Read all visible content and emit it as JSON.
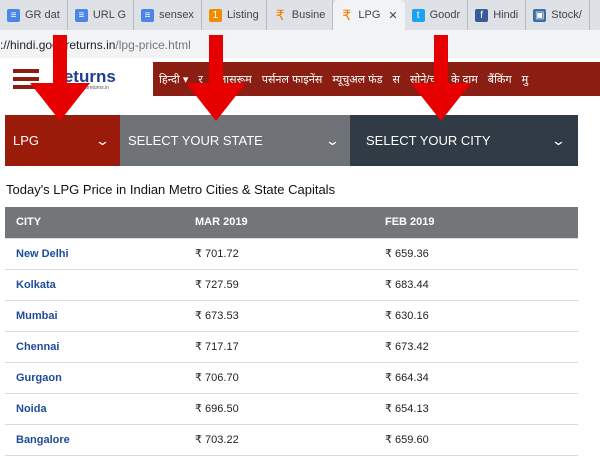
{
  "browser": {
    "tabs": [
      {
        "label": "GR dat",
        "icon": "docs-icon",
        "color": "#4a86e8"
      },
      {
        "label": "URL G",
        "icon": "docs-icon",
        "color": "#4a86e8"
      },
      {
        "label": "sensex",
        "icon": "docs-icon",
        "color": "#4a86e8"
      },
      {
        "label": "Listing",
        "icon": "orange-circle-icon",
        "color": "#f08c00"
      },
      {
        "label": "Busine",
        "icon": "rupee-icon",
        "color": "#f07d00"
      },
      {
        "label": "LPG",
        "icon": "rupee-icon",
        "color": "#f07d00",
        "active": true
      },
      {
        "label": "Goodr",
        "icon": "twitter-icon",
        "color": "#1da1f2"
      },
      {
        "label": "Hindi",
        "icon": "facebook-icon",
        "color": "#3b5998"
      },
      {
        "label": "Stock/",
        "icon": "image-icon",
        "color": "#3a6ea5"
      }
    ],
    "close_label": "✕",
    "url_prefix": "://hindi.goodreturns.in",
    "url_path": "/lpg-price.html"
  },
  "site": {
    "brand_symbol": "₹",
    "brand": "eturns",
    "brand_sub": "www.goodreturns.in",
    "language": "हिन्दी ▾",
    "nav": [
      "र",
      "क्लासरूम",
      "पर्सनल फाइनेंस",
      "म्यूचुअल फंड",
      "स",
      "सोने/चांदी के दाम",
      "बैंकिंग",
      "मु"
    ]
  },
  "selectors": {
    "fuel": "LPG",
    "state": "SELECT YOUR STATE",
    "city": "SELECT YOUR CITY",
    "chevron": "⌄"
  },
  "title": "Today's LPG Price in Indian Metro Cities & State Capitals",
  "table": {
    "headers": [
      "CITY",
      "MAR 2019",
      "FEB 2019"
    ],
    "rows": [
      [
        "New Delhi",
        "₹ 701.72",
        "₹ 659.36"
      ],
      [
        "Kolkata",
        "₹ 727.59",
        "₹ 683.44"
      ],
      [
        "Mumbai",
        "₹ 673.53",
        "₹ 630.16"
      ],
      [
        "Chennai",
        "₹ 717.17",
        "₹ 673.42"
      ],
      [
        "Gurgaon",
        "₹ 706.70",
        "₹ 664.34"
      ],
      [
        "Noida",
        "₹ 696.50",
        "₹ 654.13"
      ],
      [
        "Bangalore",
        "₹ 703.22",
        "₹ 659.60"
      ]
    ]
  },
  "colors": {
    "fuel_bg": "#9b1b0a",
    "state_bg": "#6f7276",
    "city_bg": "#303b45",
    "nav_bg": "#8b1e12",
    "arrow": "#e60000"
  }
}
